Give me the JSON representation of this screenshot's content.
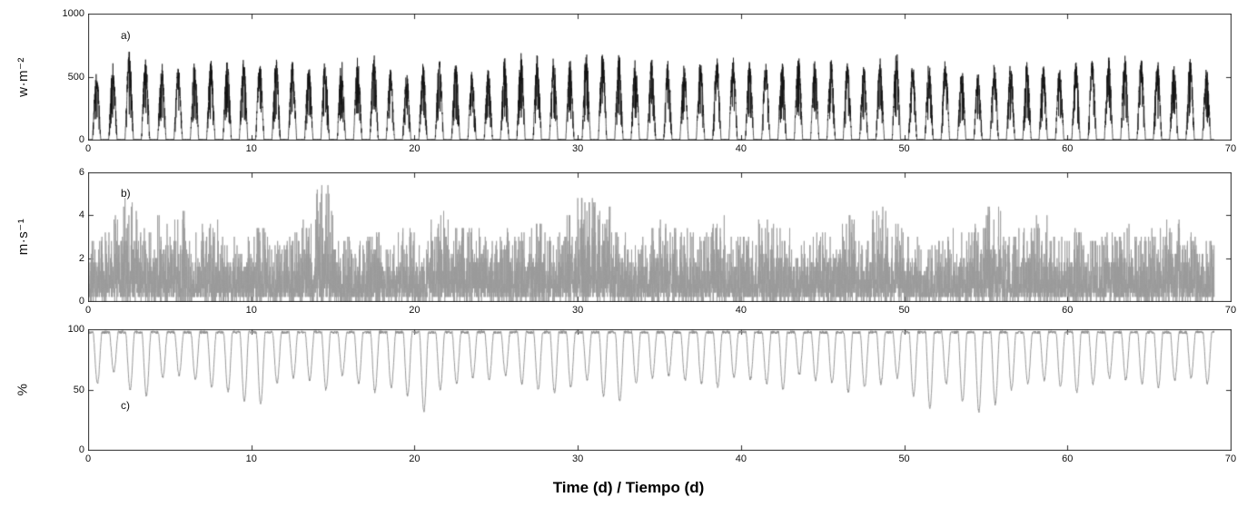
{
  "figure": {
    "xlabel": "Time (d) / Tiempo (d)",
    "background": "#ffffff",
    "axis_color": "#2b2b2b",
    "tick_label_color": "#111111"
  },
  "chart_data": [
    {
      "type": "line",
      "panel_label": "a)",
      "ylabel": "w·m⁻²",
      "color": "#111111",
      "xlim": [
        0,
        70
      ],
      "ylim": [
        0,
        1000
      ],
      "xticks": [
        0,
        10,
        20,
        30,
        40,
        50,
        60,
        70
      ],
      "yticks": [
        0,
        500,
        1000
      ],
      "pattern": "diurnal solar cycles, one peak per day, zero at night",
      "daily_peaks": [
        530,
        610,
        700,
        640,
        620,
        600,
        615,
        640,
        655,
        645,
        630,
        650,
        620,
        605,
        635,
        645,
        655,
        680,
        560,
        525,
        605,
        645,
        625,
        545,
        565,
        655,
        700,
        685,
        660,
        645,
        690,
        705,
        680,
        650,
        645,
        625,
        605,
        635,
        650,
        660,
        645,
        620,
        650,
        665,
        635,
        645,
        655,
        605,
        645,
        720,
        605,
        625,
        635,
        565,
        545,
        605,
        625,
        645,
        605,
        585,
        625,
        645,
        660,
        680,
        655,
        635,
        605,
        645,
        565
      ]
    },
    {
      "type": "line",
      "panel_label": "b)",
      "ylabel": "m·s⁻¹",
      "color": "#9a9a9a",
      "xlim": [
        0,
        70
      ],
      "ylim": [
        0,
        6
      ],
      "xticks": [
        0,
        10,
        20,
        30,
        40,
        50,
        60,
        70
      ],
      "yticks": [
        0,
        2,
        4,
        6
      ],
      "pattern": "noisy spiky series, dense band near 0-2 with gusts to daily maxima",
      "daily_maxima": [
        3.0,
        4.0,
        4.8,
        3.5,
        4.2,
        4.5,
        3.2,
        3.8,
        3.4,
        3.0,
        3.6,
        2.8,
        3.2,
        4.0,
        5.5,
        3.1,
        2.9,
        3.3,
        2.7,
        3.5,
        3.0,
        4.2,
        3.8,
        3.5,
        3.2,
        3.6,
        3.4,
        3.8,
        3.2,
        4.3,
        5.0,
        4.6,
        3.4,
        3.0,
        3.6,
        3.8,
        3.4,
        3.2,
        4.1,
        3.0,
        3.3,
        3.9,
        3.5,
        2.8,
        3.2,
        3.4,
        4.1,
        3.0,
        4.4,
        3.6,
        3.2,
        2.6,
        3.0,
        3.4,
        3.8,
        4.5,
        3.1,
        3.5,
        4.1,
        3.0,
        3.4,
        2.9,
        3.3,
        3.7,
        3.1,
        3.5,
        3.9,
        3.2,
        2.8
      ]
    },
    {
      "type": "line",
      "panel_label": "c)",
      "ylabel": "%",
      "color": "#8c8c8c",
      "xlim": [
        0,
        70
      ],
      "ylim": [
        0,
        100
      ],
      "xticks": [
        0,
        10,
        20,
        30,
        40,
        50,
        60,
        70
      ],
      "yticks": [
        0,
        50,
        100
      ],
      "pattern": "near 95-100 at night, dips each day to the daily minimum",
      "night_level": 97.5,
      "daily_minima": [
        55,
        65,
        50,
        45,
        60,
        62,
        58,
        52,
        48,
        40,
        38,
        55,
        60,
        58,
        50,
        62,
        55,
        48,
        52,
        45,
        32,
        50,
        55,
        60,
        58,
        62,
        55,
        50,
        48,
        52,
        58,
        45,
        40,
        55,
        60,
        62,
        58,
        55,
        52,
        60,
        58,
        55,
        50,
        62,
        58,
        55,
        48,
        52,
        55,
        60,
        45,
        35,
        55,
        40,
        32,
        38,
        50,
        55,
        58,
        52,
        48,
        55,
        60,
        58,
        55,
        52,
        58,
        60,
        55
      ]
    }
  ]
}
